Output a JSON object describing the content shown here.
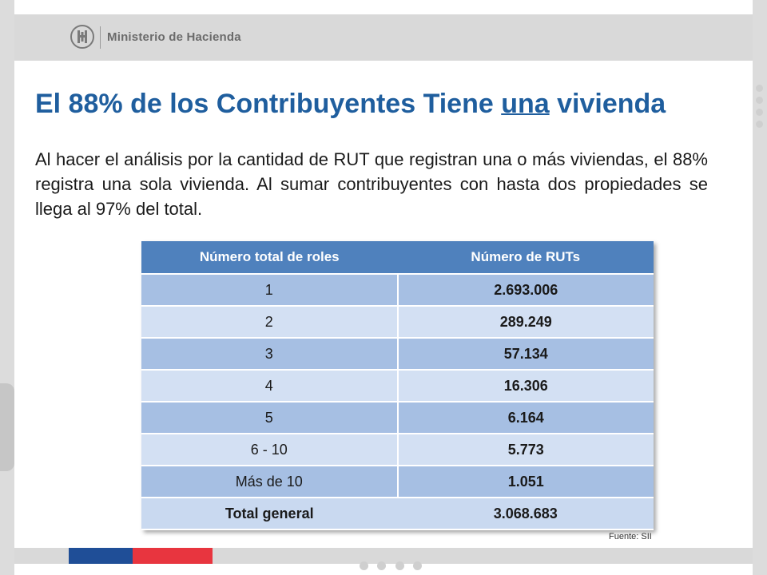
{
  "header": {
    "logo_icon": "coat-of-arms-icon",
    "ministry_name": "Ministerio de Hacienda"
  },
  "title": {
    "before": "El 88% de los Contribuyentes Tiene ",
    "underlined": "una",
    "after": " vivienda",
    "color": "#1f5e9e"
  },
  "body": {
    "paragraph": "Al hacer el análisis por la cantidad de RUT que registran una o más viviendas, el 88% registra una sola vivienda. Al sumar contribuyentes con hasta dos propiedades se llega al 97% del total."
  },
  "table": {
    "columns": [
      "Número total de roles",
      "Número de RUTs"
    ],
    "rows": [
      {
        "roles": "1",
        "ruts": "2.693.006"
      },
      {
        "roles": "2",
        "ruts": "289.249"
      },
      {
        "roles": "3",
        "ruts": "57.134"
      },
      {
        "roles": "4",
        "ruts": "16.306"
      },
      {
        "roles": "5",
        "ruts": "6.164"
      },
      {
        "roles": "6 - 10",
        "ruts": "5.773"
      },
      {
        "roles": "Más de 10",
        "ruts": "1.051"
      }
    ],
    "total": {
      "label": "Total general",
      "value": "3.068.683"
    },
    "header_color": "#4f81bd",
    "band_dark": "#a6bfe3",
    "band_light": "#d3e0f3"
  },
  "source": "Fuente: SII",
  "footer": {
    "flag_colors": [
      "#1f4e97",
      "#e8353f"
    ]
  }
}
